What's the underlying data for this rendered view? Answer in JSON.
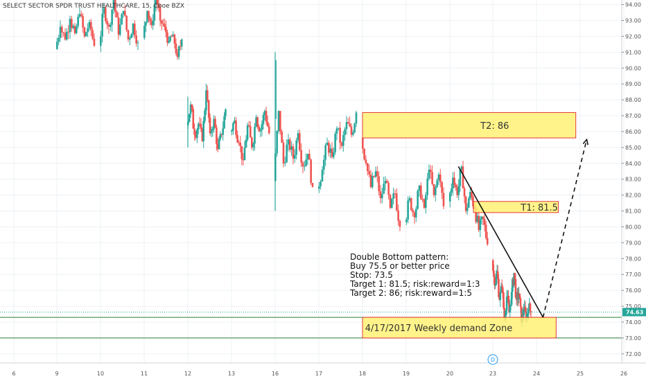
{
  "chart_data": {
    "type": "candlestick",
    "title": "SELECT SECTOR SPDR TRUST HEALTHCARE, 15, Cboe BZX",
    "x_ticks": [
      "6",
      "9",
      "10",
      "11",
      "12",
      "13",
      "16",
      "17",
      "18",
      "19",
      "20",
      "23",
      "24",
      "25",
      "26"
    ],
    "y_ticks": [
      "72.00",
      "73.00",
      "74.00",
      "75.00",
      "76.00",
      "77.00",
      "78.00",
      "79.00",
      "80.00",
      "81.00",
      "82.00",
      "83.00",
      "84.00",
      "85.00",
      "86.00",
      "87.00",
      "88.00",
      "89.00",
      "90.00",
      "91.00",
      "92.00",
      "93.00",
      "94.00"
    ],
    "y_range": [
      71.6,
      94.2
    ],
    "last_price": "74.63",
    "colors": {
      "up": "#26a69a",
      "down": "#ef5350",
      "zone_fill": "#fff176",
      "zone_border": "#e53935",
      "demand_line": "#2e7d32",
      "last_line": "#26a69a"
    },
    "segments": [
      {
        "day": 9,
        "o": 91.2,
        "pts": [
          92.6,
          91.8,
          93.1,
          92.2,
          93.4,
          92.0,
          92.9,
          91.4
        ]
      },
      {
        "day": 10,
        "o": 91.4,
        "pts": [
          93.8,
          92.6,
          94.3,
          92.1,
          93.6,
          91.8,
          92.8,
          91.6
        ]
      },
      {
        "day": 11,
        "o": 91.9,
        "pts": [
          93.6,
          92.7,
          94.6,
          93.0,
          92.6,
          91.7,
          92.1,
          90.7,
          91.8
        ]
      },
      {
        "day": 12,
        "o": 86.4,
        "pts": [
          87.7,
          85.8,
          86.5,
          85.4,
          88.6,
          85.9,
          86.8,
          84.9,
          85.8,
          87.4
        ]
      },
      {
        "day": 13,
        "o": 86.0,
        "pts": [
          86.7,
          85.3,
          84.2,
          86.4,
          85.0,
          86.9,
          86.1,
          87.3,
          85.9
        ]
      },
      {
        "day": 16,
        "o": 82.9,
        "pts": [
          87.3,
          84.0,
          85.5,
          84.3,
          85.9,
          83.8,
          84.6,
          82.5
        ]
      },
      {
        "day": 17,
        "o": 82.4,
        "pts": [
          83.6,
          85.3,
          84.4,
          86.2,
          85.1,
          86.6,
          85.8,
          87.2
        ]
      },
      {
        "day": 18,
        "o": 85.6,
        "pts": [
          84.0,
          82.5,
          83.5,
          81.8,
          82.9,
          81.2,
          82.1,
          80.0
        ]
      },
      {
        "day": 19,
        "o": 80.3,
        "pts": [
          81.8,
          80.6,
          82.6,
          81.2,
          83.6,
          82.0,
          83.3,
          81.3
        ]
      },
      {
        "day": 20,
        "o": 81.6,
        "pts": [
          83.1,
          82.0,
          83.8,
          81.0,
          82.2,
          81.2,
          79.8,
          80.5,
          78.9
        ]
      },
      {
        "day": 23,
        "o": 77.9,
        "pts": [
          76.3,
          77.2,
          75.4,
          76.2,
          74.3,
          75.6,
          74.6,
          75.9,
          77.1,
          75.4,
          75.8,
          74.0,
          74.8,
          74.2,
          74.9,
          74.63
        ]
      }
    ],
    "zones": [
      {
        "label": "T2: 86",
        "y_low": 85.6,
        "y_high": 87.2,
        "x_start": 18.0,
        "x_end": 24.9
      },
      {
        "label": "T1: 81.5",
        "y_low": 80.9,
        "y_high": 81.6,
        "x_start": 20.55,
        "x_end": 24.5
      },
      {
        "label": "4/17/2017 Weekly demand Zone",
        "y_low": 73.0,
        "y_high": 74.3,
        "x_start": 18.0,
        "x_end": 24.45
      }
    ],
    "demand_lines": [
      74.3,
      73.0
    ],
    "trendline": {
      "x1": 20.2,
      "y1": 83.8,
      "x2": 24.15,
      "y2": 74.3
    },
    "projection": {
      "x1": 24.15,
      "y1": 74.3,
      "x2": 25.15,
      "y2": 85.5
    },
    "annotation": {
      "lines": [
        "Double Bottom pattern:",
        "Buy 75.5 or better price",
        "Stop:  73.5",
        "Target 1: 81.5; risk:reward=1:3",
        "Target 2: 86; risk:reward=1:5"
      ]
    },
    "event_marker": "D",
    "grid": true
  }
}
